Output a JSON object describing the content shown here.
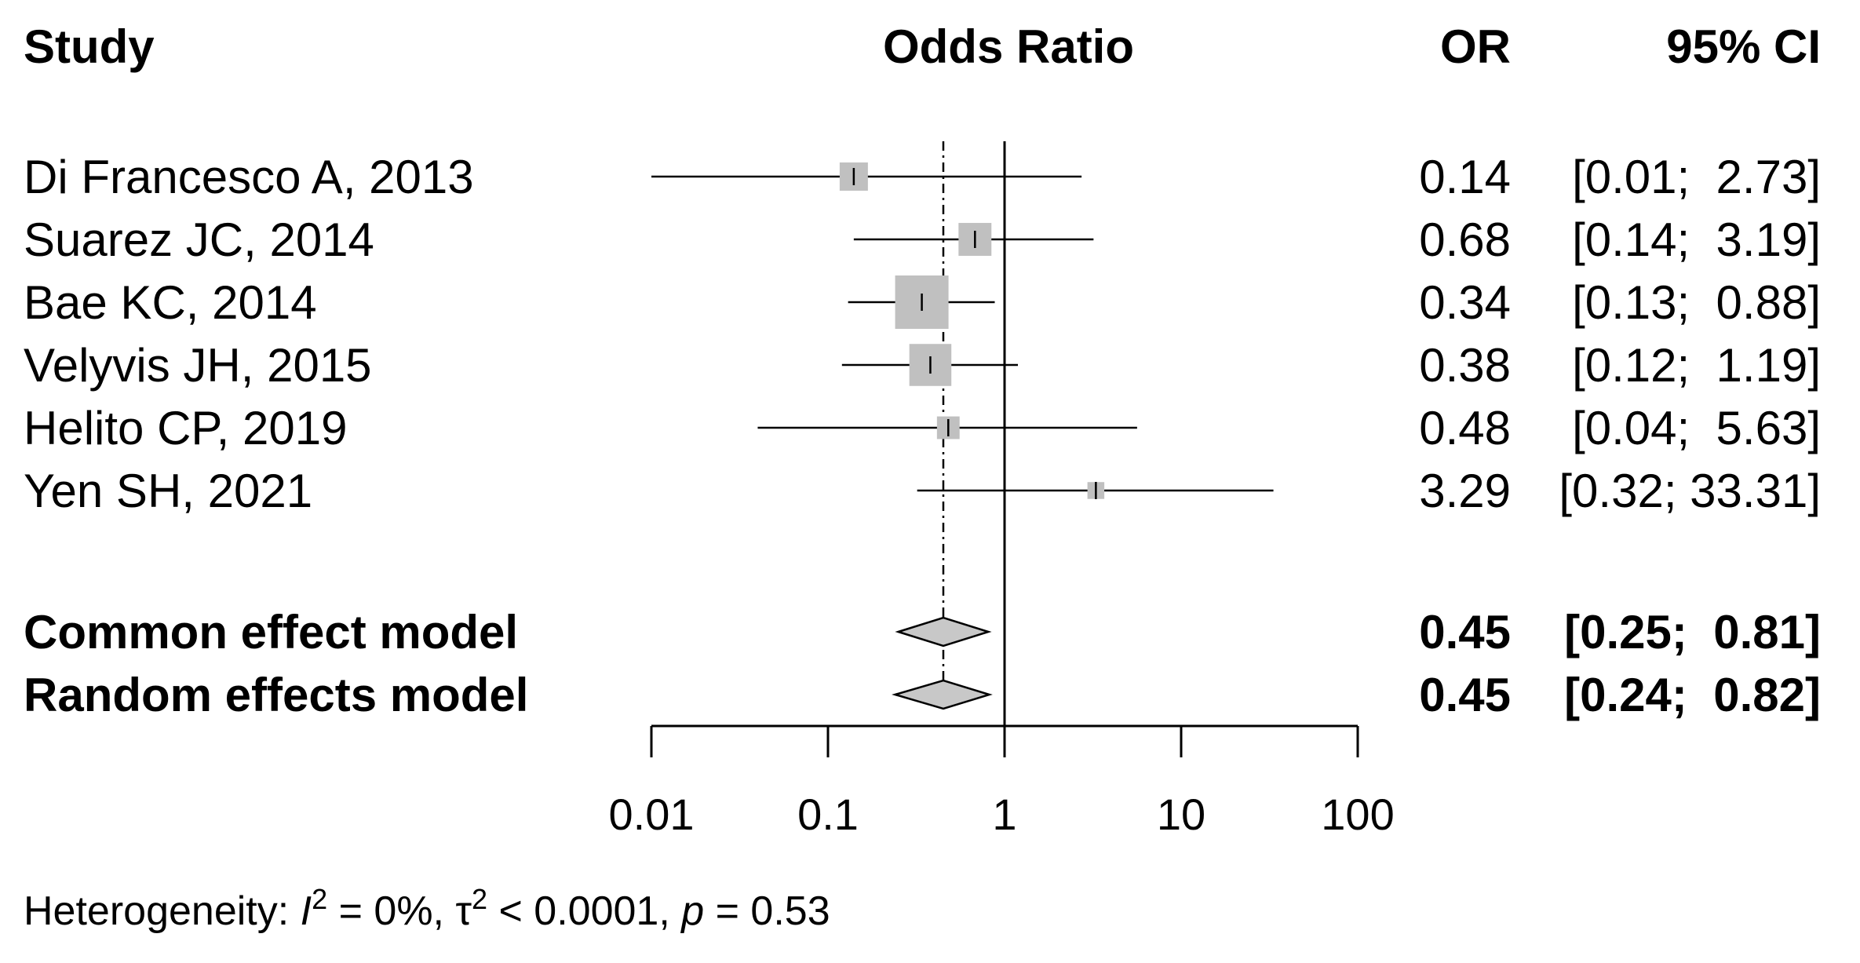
{
  "headers": {
    "study": "Study",
    "effect": "Odds Ratio",
    "or": "OR",
    "ci": "95% CI"
  },
  "chart_data": {
    "type": "forest",
    "x_scale": "log",
    "xlim": [
      0.01,
      100
    ],
    "x_ticks": [
      0.01,
      0.1,
      1,
      10,
      100
    ],
    "x_tick_labels": [
      "0.01",
      "0.1",
      "1",
      "10",
      "100"
    ],
    "reference_line": 1,
    "pooled_line": 0.45,
    "studies": [
      {
        "label": "Di Francesco A, 2013",
        "or": 0.14,
        "lower": 0.01,
        "upper": 2.73,
        "or_text": "0.14",
        "ci_text": "[0.01;  2.73]",
        "weight": 0.28
      },
      {
        "label": "Suarez JC, 2014",
        "or": 0.68,
        "lower": 0.14,
        "upper": 3.19,
        "or_text": "0.68",
        "ci_text": "[0.14;  3.19]",
        "weight": 0.38
      },
      {
        "label": "Bae KC, 2014",
        "or": 0.34,
        "lower": 0.13,
        "upper": 0.88,
        "or_text": "0.34",
        "ci_text": "[0.13;  0.88]",
        "weight": 1.0
      },
      {
        "label": "Velyvis JH, 2015",
        "or": 0.38,
        "lower": 0.12,
        "upper": 1.19,
        "or_text": "0.38",
        "ci_text": "[0.12;  1.19]",
        "weight": 0.62
      },
      {
        "label": "Helito CP, 2019",
        "or": 0.48,
        "lower": 0.04,
        "upper": 5.63,
        "or_text": "0.48",
        "ci_text": "[0.04;  5.63]",
        "weight": 0.18
      },
      {
        "label": "Yen SH, 2021",
        "or": 3.29,
        "lower": 0.32,
        "upper": 33.31,
        "or_text": "3.29",
        "ci_text": "[0.32; 33.31]",
        "weight": 0.1
      }
    ],
    "summaries": [
      {
        "label": "Common effect model",
        "or": 0.45,
        "lower": 0.25,
        "upper": 0.81,
        "or_text": "0.45",
        "ci_text": "[0.25;  0.81]"
      },
      {
        "label": "Random effects model",
        "or": 0.45,
        "lower": 0.24,
        "upper": 0.82,
        "or_text": "0.45",
        "ci_text": "[0.24;  0.82]"
      }
    ],
    "heterogeneity": {
      "prefix": "Heterogeneity: ",
      "i2_symbol": "I",
      "i2_rest": " = 0%, ",
      "tau_symbol": "τ",
      "tau_rest": " < 0.0001, ",
      "p_symbol": "p",
      "p_rest": " = 0.53",
      "sup": "2"
    },
    "colors": {
      "square_fill": "#c0c0c0",
      "diamond_fill": "#c8c8c8",
      "line": "#000000"
    }
  }
}
